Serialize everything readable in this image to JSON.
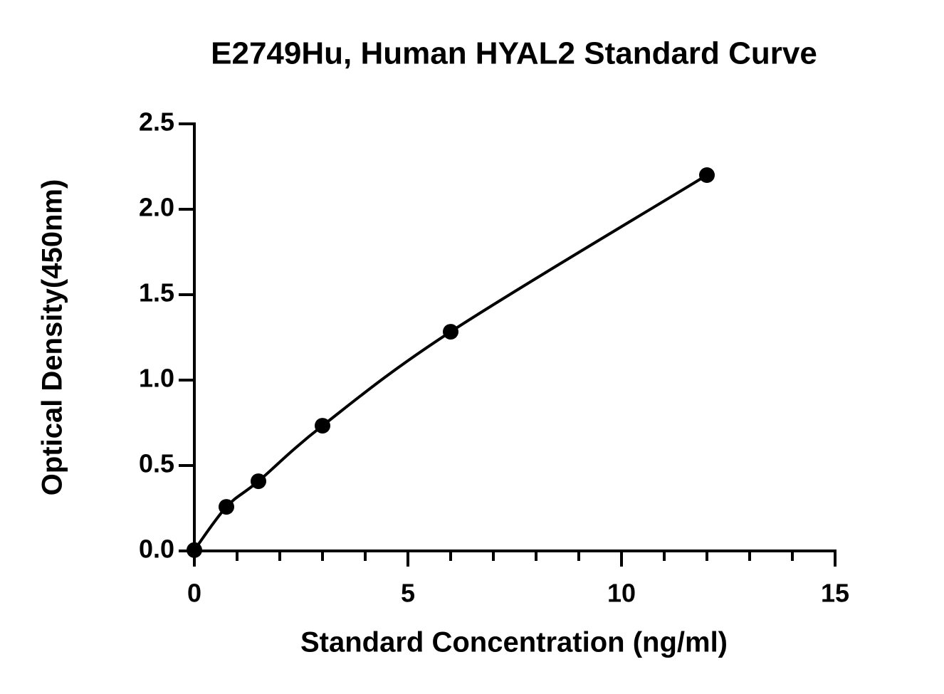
{
  "chart_data": {
    "type": "scatter",
    "title": "E2749Hu, Human HYAL2 Standard Curve",
    "x_label": "Standard Concentration (ng/ml)",
    "y_label": "Optical Density(450nm)",
    "series": [
      {
        "x": [
          0,
          0.75,
          1.5,
          3,
          6,
          12
        ],
        "values": [
          0.005,
          0.258,
          0.408,
          0.733,
          1.283,
          2.2
        ],
        "color": "#000000"
      }
    ],
    "xlim": [
      0,
      15
    ],
    "xticks": [
      0,
      5,
      10,
      15
    ],
    "xminorticks": [
      1,
      2,
      3,
      4,
      6,
      7,
      8,
      9,
      11,
      12,
      13,
      14
    ],
    "ylim": [
      0,
      2.5
    ],
    "yticks": [
      {
        "value": 0,
        "label": "0.0"
      },
      {
        "value": 0.5,
        "label": "0.5"
      },
      {
        "value": 1,
        "label": "1.0"
      },
      {
        "value": 1.5,
        "label": "1.5"
      },
      {
        "value": 2,
        "label": "2.0"
      },
      {
        "value": 2.5,
        "label": "2.5"
      }
    ],
    "smooth_curve": true
  }
}
